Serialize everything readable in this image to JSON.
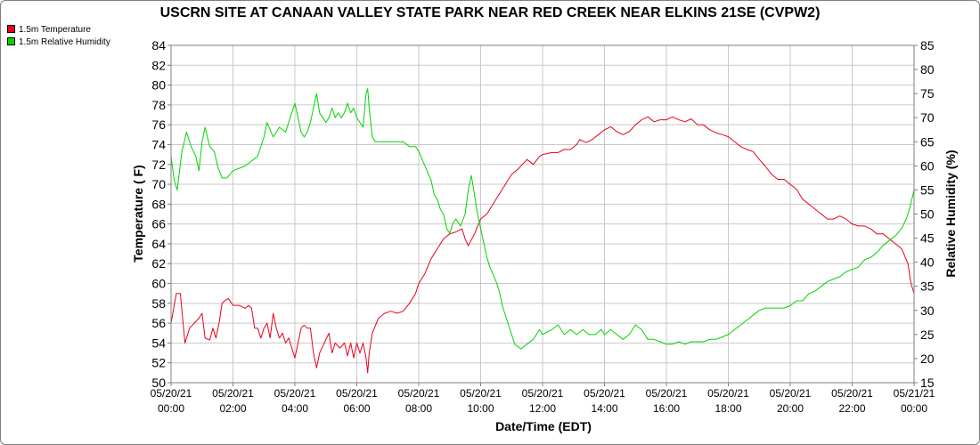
{
  "chart_data": {
    "type": "line",
    "title": "USCRN SITE AT CANAAN VALLEY STATE PARK NEAR RED CREEK NEAR ELKINS 21SE (CVPW2)",
    "xlabel": "Date/Time (EDT)",
    "ylabel_left": "Temperature ( F)",
    "ylabel_right": "Relative Humidity (%)",
    "x_unit": "hours after 05/20/21 00:00",
    "xlim": [
      0,
      24
    ],
    "ylim_left": [
      50,
      84
    ],
    "ylim_right": [
      15,
      85
    ],
    "grid": true,
    "legend_position": "top-left, outside plot",
    "x_ticks": [
      {
        "date": "05/20/21",
        "time": "00:00"
      },
      {
        "date": "05/20/21",
        "time": "02:00"
      },
      {
        "date": "05/20/21",
        "time": "04:00"
      },
      {
        "date": "05/20/21",
        "time": "06:00"
      },
      {
        "date": "05/20/21",
        "time": "08:00"
      },
      {
        "date": "05/20/21",
        "time": "10:00"
      },
      {
        "date": "05/20/21",
        "time": "12:00"
      },
      {
        "date": "05/20/21",
        "time": "14:00"
      },
      {
        "date": "05/20/21",
        "time": "16:00"
      },
      {
        "date": "05/20/21",
        "time": "18:00"
      },
      {
        "date": "05/20/21",
        "time": "20:00"
      },
      {
        "date": "05/20/21",
        "time": "22:00"
      },
      {
        "date": "05/21/21",
        "time": "00:00"
      }
    ],
    "y_ticks_left": [
      "50",
      "52",
      "54",
      "56",
      "58",
      "60",
      "62",
      "64",
      "66",
      "68",
      "70",
      "72",
      "74",
      "76",
      "78",
      "80",
      "82",
      "84"
    ],
    "y_ticks_right": [
      "15",
      "20",
      "25",
      "30",
      "35",
      "40",
      "45",
      "50",
      "55",
      "60",
      "65",
      "70",
      "75",
      "80",
      "85"
    ],
    "series": [
      {
        "name": "1.5m Temperature",
        "axis": "left",
        "color": "#e8001c",
        "points": [
          [
            0,
            56
          ],
          [
            0.17,
            59
          ],
          [
            0.3,
            59
          ],
          [
            0.45,
            54
          ],
          [
            0.6,
            55.5
          ],
          [
            0.75,
            56
          ],
          [
            0.9,
            56.5
          ],
          [
            1,
            57
          ],
          [
            1.1,
            54.5
          ],
          [
            1.25,
            54.3
          ],
          [
            1.35,
            55.5
          ],
          [
            1.45,
            54.5
          ],
          [
            1.55,
            56
          ],
          [
            1.65,
            58
          ],
          [
            1.75,
            58.3
          ],
          [
            1.85,
            58.5
          ],
          [
            2,
            57.8
          ],
          [
            2.2,
            57.8
          ],
          [
            2.4,
            57.5
          ],
          [
            2.5,
            57.8
          ],
          [
            2.6,
            57.5
          ],
          [
            2.7,
            55.5
          ],
          [
            2.8,
            55.5
          ],
          [
            2.9,
            54.5
          ],
          [
            3,
            55.5
          ],
          [
            3.1,
            56
          ],
          [
            3.2,
            54.5
          ],
          [
            3.3,
            57
          ],
          [
            3.4,
            55.5
          ],
          [
            3.5,
            54.5
          ],
          [
            3.6,
            55
          ],
          [
            3.7,
            54
          ],
          [
            3.8,
            54.5
          ],
          [
            3.9,
            53.5
          ],
          [
            4,
            52.5
          ],
          [
            4.1,
            54
          ],
          [
            4.2,
            55.5
          ],
          [
            4.3,
            55.8
          ],
          [
            4.4,
            55.5
          ],
          [
            4.5,
            55.5
          ],
          [
            4.6,
            53
          ],
          [
            4.7,
            51.5
          ],
          [
            4.8,
            53
          ],
          [
            4.95,
            54
          ],
          [
            5.1,
            55
          ],
          [
            5.2,
            53
          ],
          [
            5.3,
            54
          ],
          [
            5.45,
            53.5
          ],
          [
            5.6,
            54
          ],
          [
            5.7,
            52.7
          ],
          [
            5.8,
            54
          ],
          [
            5.9,
            52.5
          ],
          [
            6,
            54
          ],
          [
            6.1,
            53
          ],
          [
            6.2,
            54
          ],
          [
            6.3,
            52.5
          ],
          [
            6.35,
            51
          ],
          [
            6.4,
            53
          ],
          [
            6.5,
            55
          ],
          [
            6.7,
            56.5
          ],
          [
            6.9,
            57
          ],
          [
            7.1,
            57.2
          ],
          [
            7.3,
            57
          ],
          [
            7.5,
            57.2
          ],
          [
            7.7,
            58
          ],
          [
            7.9,
            59
          ],
          [
            8,
            60
          ],
          [
            8.2,
            61
          ],
          [
            8.4,
            62.5
          ],
          [
            8.6,
            63.5
          ],
          [
            8.8,
            64.5
          ],
          [
            9,
            65
          ],
          [
            9.2,
            65.2
          ],
          [
            9.4,
            65.5
          ],
          [
            9.5,
            64.5
          ],
          [
            9.6,
            63.8
          ],
          [
            9.8,
            65
          ],
          [
            10,
            66.5
          ],
          [
            10.2,
            67
          ],
          [
            10.4,
            68
          ],
          [
            10.6,
            69
          ],
          [
            10.8,
            70
          ],
          [
            11,
            71
          ],
          [
            11.2,
            71.5
          ],
          [
            11.5,
            72.5
          ],
          [
            11.7,
            72
          ],
          [
            11.9,
            72.8
          ],
          [
            12,
            73
          ],
          [
            12.3,
            73.2
          ],
          [
            12.5,
            73.2
          ],
          [
            12.7,
            73.5
          ],
          [
            12.9,
            73.5
          ],
          [
            13.1,
            74
          ],
          [
            13.2,
            74.5
          ],
          [
            13.4,
            74.2
          ],
          [
            13.6,
            74.5
          ],
          [
            13.8,
            75
          ],
          [
            14,
            75.5
          ],
          [
            14.2,
            75.8
          ],
          [
            14.4,
            75.3
          ],
          [
            14.6,
            75
          ],
          [
            14.8,
            75.3
          ],
          [
            15,
            76
          ],
          [
            15.2,
            76.5
          ],
          [
            15.4,
            76.8
          ],
          [
            15.6,
            76.3
          ],
          [
            15.8,
            76.5
          ],
          [
            16,
            76.5
          ],
          [
            16.2,
            76.8
          ],
          [
            16.4,
            76.5
          ],
          [
            16.6,
            76.3
          ],
          [
            16.8,
            76.6
          ],
          [
            17,
            76
          ],
          [
            17.2,
            76
          ],
          [
            17.4,
            75.5
          ],
          [
            17.6,
            75.2
          ],
          [
            17.8,
            75
          ],
          [
            18,
            74.8
          ],
          [
            18.2,
            74.3
          ],
          [
            18.4,
            73.8
          ],
          [
            18.6,
            73.5
          ],
          [
            18.8,
            73.3
          ],
          [
            19,
            72.5
          ],
          [
            19.2,
            71.8
          ],
          [
            19.4,
            71
          ],
          [
            19.6,
            70.5
          ],
          [
            19.8,
            70.5
          ],
          [
            20,
            70
          ],
          [
            20.2,
            69.5
          ],
          [
            20.4,
            68.5
          ],
          [
            20.6,
            68
          ],
          [
            20.8,
            67.5
          ],
          [
            21,
            67
          ],
          [
            21.2,
            66.5
          ],
          [
            21.4,
            66.5
          ],
          [
            21.6,
            66.8
          ],
          [
            21.8,
            66.5
          ],
          [
            22,
            66
          ],
          [
            22.2,
            65.8
          ],
          [
            22.4,
            65.8
          ],
          [
            22.6,
            65.5
          ],
          [
            22.8,
            65
          ],
          [
            23,
            65
          ],
          [
            23.2,
            64.5
          ],
          [
            23.4,
            64
          ],
          [
            23.6,
            63.5
          ],
          [
            23.8,
            62
          ],
          [
            23.9,
            60
          ],
          [
            24,
            59
          ]
        ]
      },
      {
        "name": "1.5m Relative Humidity",
        "axis": "right",
        "color": "#00d400",
        "points": [
          [
            0,
            62
          ],
          [
            0.1,
            57
          ],
          [
            0.2,
            55
          ],
          [
            0.35,
            63
          ],
          [
            0.5,
            67
          ],
          [
            0.65,
            64
          ],
          [
            0.8,
            62
          ],
          [
            0.9,
            59
          ],
          [
            1,
            65
          ],
          [
            1.1,
            68
          ],
          [
            1.25,
            64
          ],
          [
            1.4,
            63
          ],
          [
            1.5,
            60
          ],
          [
            1.65,
            57.5
          ],
          [
            1.8,
            57.5
          ],
          [
            2,
            59
          ],
          [
            2.2,
            59.5
          ],
          [
            2.4,
            60
          ],
          [
            2.6,
            61
          ],
          [
            2.8,
            62
          ],
          [
            3,
            66
          ],
          [
            3.1,
            69
          ],
          [
            3.3,
            66
          ],
          [
            3.5,
            68
          ],
          [
            3.7,
            67
          ],
          [
            3.8,
            69
          ],
          [
            3.9,
            71
          ],
          [
            4,
            73
          ],
          [
            4.1,
            70
          ],
          [
            4.2,
            67
          ],
          [
            4.3,
            66
          ],
          [
            4.4,
            67
          ],
          [
            4.5,
            69
          ],
          [
            4.6,
            72
          ],
          [
            4.7,
            75
          ],
          [
            4.8,
            71
          ],
          [
            4.9,
            70
          ],
          [
            5,
            69
          ],
          [
            5.1,
            70
          ],
          [
            5.2,
            72
          ],
          [
            5.3,
            70
          ],
          [
            5.4,
            71
          ],
          [
            5.5,
            70
          ],
          [
            5.6,
            71
          ],
          [
            5.7,
            73
          ],
          [
            5.8,
            71
          ],
          [
            5.9,
            72
          ],
          [
            6,
            70
          ],
          [
            6.1,
            69
          ],
          [
            6.2,
            68
          ],
          [
            6.3,
            75
          ],
          [
            6.35,
            76
          ],
          [
            6.4,
            72
          ],
          [
            6.5,
            66
          ],
          [
            6.6,
            65
          ],
          [
            6.8,
            65
          ],
          [
            7,
            65
          ],
          [
            7.2,
            65
          ],
          [
            7.5,
            65
          ],
          [
            7.7,
            64
          ],
          [
            7.9,
            64
          ],
          [
            8,
            63
          ],
          [
            8.2,
            60
          ],
          [
            8.4,
            57
          ],
          [
            8.5,
            54
          ],
          [
            8.6,
            53
          ],
          [
            8.7,
            51
          ],
          [
            8.8,
            50
          ],
          [
            8.9,
            47
          ],
          [
            9,
            46
          ],
          [
            9.1,
            48
          ],
          [
            9.2,
            49
          ],
          [
            9.35,
            47.5
          ],
          [
            9.5,
            50
          ],
          [
            9.6,
            55
          ],
          [
            9.7,
            58
          ],
          [
            9.8,
            54
          ],
          [
            9.9,
            50
          ],
          [
            10,
            47
          ],
          [
            10.1,
            44
          ],
          [
            10.2,
            41
          ],
          [
            10.3,
            39
          ],
          [
            10.5,
            36
          ],
          [
            10.6,
            34
          ],
          [
            10.7,
            31
          ],
          [
            10.9,
            27
          ],
          [
            11,
            25
          ],
          [
            11.1,
            23
          ],
          [
            11.3,
            22
          ],
          [
            11.5,
            23
          ],
          [
            11.7,
            24
          ],
          [
            11.9,
            26
          ],
          [
            12,
            25
          ],
          [
            12.3,
            26
          ],
          [
            12.5,
            27
          ],
          [
            12.7,
            25
          ],
          [
            12.9,
            26
          ],
          [
            13.1,
            25
          ],
          [
            13.3,
            26
          ],
          [
            13.5,
            25
          ],
          [
            13.7,
            25
          ],
          [
            13.9,
            26
          ],
          [
            14,
            25
          ],
          [
            14.2,
            26
          ],
          [
            14.4,
            25
          ],
          [
            14.6,
            24
          ],
          [
            14.8,
            25
          ],
          [
            15,
            27
          ],
          [
            15.2,
            26
          ],
          [
            15.4,
            24
          ],
          [
            15.6,
            24
          ],
          [
            15.8,
            23.5
          ],
          [
            16,
            23
          ],
          [
            16.2,
            23
          ],
          [
            16.4,
            23.5
          ],
          [
            16.6,
            23
          ],
          [
            16.8,
            23.5
          ],
          [
            17,
            23.5
          ],
          [
            17.2,
            23.5
          ],
          [
            17.4,
            24
          ],
          [
            17.6,
            24
          ],
          [
            17.8,
            24.5
          ],
          [
            18,
            25
          ],
          [
            18.2,
            26
          ],
          [
            18.4,
            27
          ],
          [
            18.6,
            28
          ],
          [
            18.8,
            29
          ],
          [
            19,
            30
          ],
          [
            19.2,
            30.5
          ],
          [
            19.4,
            30.5
          ],
          [
            19.6,
            30.5
          ],
          [
            19.8,
            30.5
          ],
          [
            20,
            31
          ],
          [
            20.2,
            32
          ],
          [
            20.4,
            32
          ],
          [
            20.6,
            33.5
          ],
          [
            20.8,
            34
          ],
          [
            21,
            35
          ],
          [
            21.2,
            36
          ],
          [
            21.4,
            36.5
          ],
          [
            21.6,
            37
          ],
          [
            21.8,
            38
          ],
          [
            22,
            38.5
          ],
          [
            22.2,
            39
          ],
          [
            22.4,
            40.5
          ],
          [
            22.6,
            41
          ],
          [
            22.8,
            42
          ],
          [
            23,
            43.5
          ],
          [
            23.2,
            44.5
          ],
          [
            23.4,
            45.5
          ],
          [
            23.6,
            47
          ],
          [
            23.75,
            49
          ],
          [
            23.85,
            51
          ],
          [
            24,
            55
          ]
        ]
      }
    ]
  }
}
